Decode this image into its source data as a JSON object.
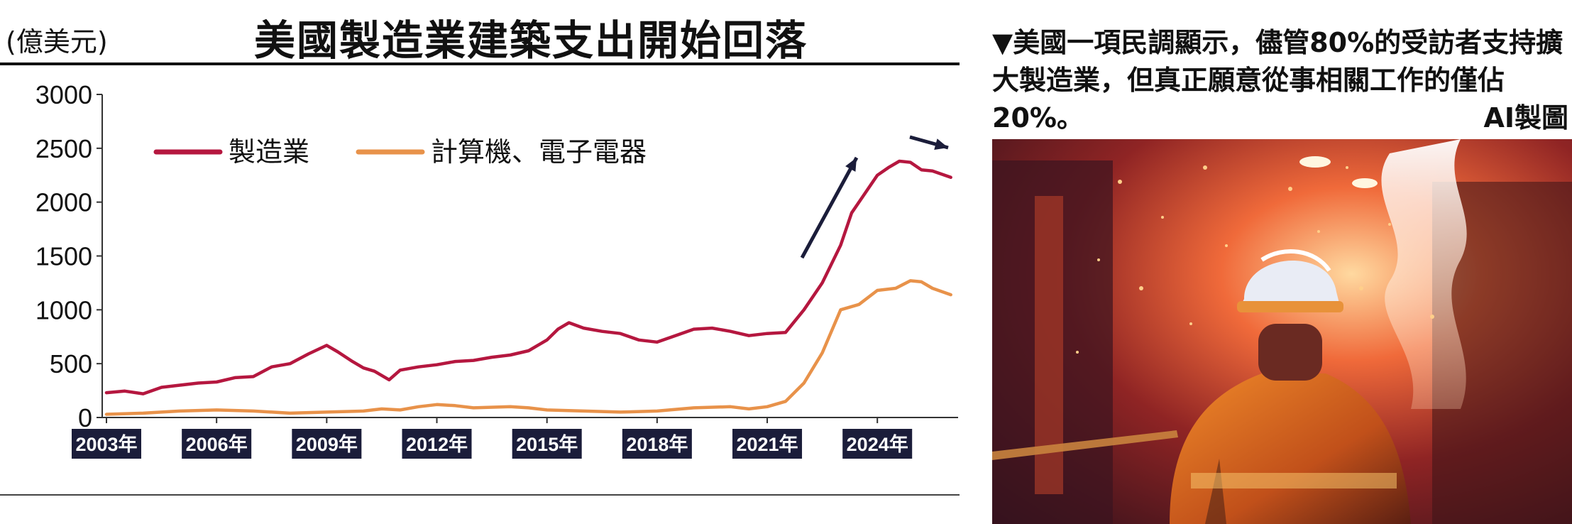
{
  "header": {
    "unit": "(億美元)",
    "title": "美國製造業建築支出開始回落"
  },
  "caption": {
    "text": "▼美國一項民調顯示，儘管80%的受訪者支持擴大製造業，但真正願意從事相關工作的僅佔20%。",
    "credit": "AI製圖"
  },
  "photo": {
    "icon": "factory-worker-photo"
  },
  "chart_data": {
    "type": "line",
    "title": "美國製造業建築支出開始回落",
    "ylabel": "(億美元)",
    "xlim": [
      2003,
      2026.2
    ],
    "ylim": [
      0,
      3000
    ],
    "yticks": [
      0,
      500,
      1000,
      1500,
      2000,
      2500,
      3000
    ],
    "xticks": [
      "2003年",
      "2006年",
      "2009年",
      "2012年",
      "2015年",
      "2018年",
      "2021年",
      "2024年"
    ],
    "xtick_values": [
      2003,
      2006,
      2009,
      2012,
      2015,
      2018,
      2021,
      2024
    ],
    "legend_position": "top-left",
    "series": [
      {
        "name": "製造業",
        "color": "#b5173f",
        "x": [
          2003,
          2003.5,
          2004,
          2004.5,
          2005,
          2005.5,
          2006,
          2006.5,
          2007,
          2007.5,
          2008,
          2008.5,
          2009,
          2009.3,
          2009.7,
          2010,
          2010.3,
          2010.7,
          2011,
          2011.5,
          2012,
          2012.5,
          2013,
          2013.5,
          2014,
          2014.5,
          2015,
          2015.3,
          2015.6,
          2016,
          2016.5,
          2017,
          2017.5,
          2018,
          2018.5,
          2019,
          2019.5,
          2020,
          2020.5,
          2021,
          2021.5,
          2022,
          2022.5,
          2023,
          2023.3,
          2023.6,
          2024,
          2024.3,
          2024.6,
          2024.9,
          2025.2,
          2025.5,
          2026
        ],
        "y": [
          230,
          245,
          220,
          280,
          300,
          320,
          330,
          370,
          380,
          470,
          500,
          590,
          670,
          610,
          520,
          460,
          430,
          350,
          440,
          470,
          490,
          520,
          530,
          560,
          580,
          620,
          720,
          820,
          880,
          830,
          800,
          780,
          720,
          700,
          760,
          820,
          830,
          800,
          760,
          780,
          790,
          1000,
          1250,
          1600,
          1900,
          2050,
          2250,
          2320,
          2380,
          2370,
          2300,
          2290,
          2230
        ]
      },
      {
        "name": "計算機、電子電器",
        "color": "#e8924a",
        "x": [
          2003,
          2004,
          2005,
          2006,
          2007,
          2008,
          2009,
          2010,
          2010.5,
          2011,
          2011.5,
          2012,
          2012.5,
          2013,
          2014,
          2014.5,
          2015,
          2016,
          2017,
          2018,
          2019,
          2020,
          2020.5,
          2021,
          2021.5,
          2022,
          2022.5,
          2023,
          2023.5,
          2024,
          2024.5,
          2024.9,
          2025.2,
          2025.5,
          2026
        ],
        "y": [
          30,
          40,
          60,
          70,
          60,
          40,
          50,
          60,
          80,
          70,
          100,
          120,
          110,
          90,
          100,
          90,
          70,
          60,
          50,
          60,
          90,
          100,
          80,
          100,
          150,
          320,
          600,
          1000,
          1050,
          1180,
          1200,
          1270,
          1260,
          1200,
          1140
        ]
      }
    ]
  }
}
